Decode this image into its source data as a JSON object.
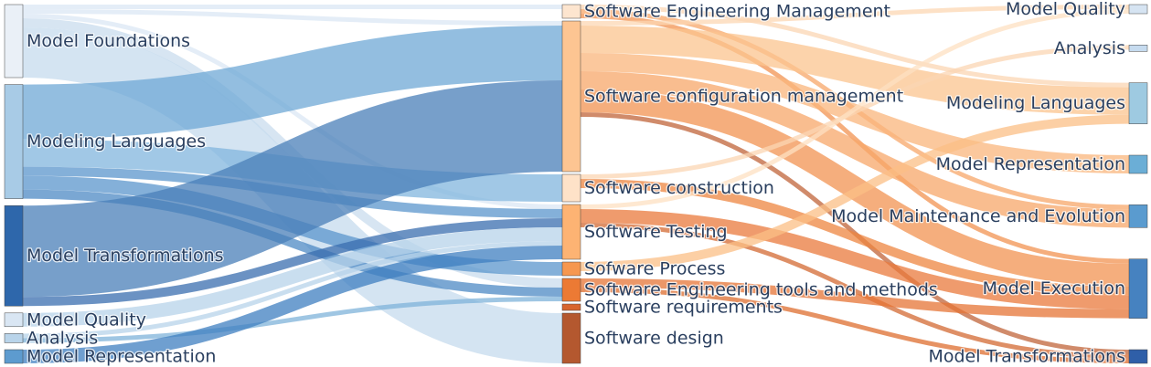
{
  "chart_data": {
    "type": "sankey",
    "nodes": [
      {
        "id": "L0",
        "column": 0,
        "label": "Model Foundations",
        "color": "#eaf0f7"
      },
      {
        "id": "L1",
        "column": 0,
        "label": "Modeling Languages",
        "color": "#a8cbe6"
      },
      {
        "id": "L2",
        "column": 0,
        "label": "Model Transformations",
        "color": "#2e67ab"
      },
      {
        "id": "L3",
        "column": 0,
        "label": "Model Quality",
        "color": "#d9e6f3"
      },
      {
        "id": "L4",
        "column": 0,
        "label": "Analysis",
        "color": "#b9d4ea"
      },
      {
        "id": "L5",
        "column": 0,
        "label": "Model Representation",
        "color": "#5d9bcf"
      },
      {
        "id": "M0",
        "column": 1,
        "label": "Software Engineering Management",
        "color": "#fde5cf"
      },
      {
        "id": "M1",
        "column": 1,
        "label": "Software configuration management",
        "color": "#fdc592"
      },
      {
        "id": "M2",
        "column": 1,
        "label": "Software construction",
        "color": "#fee2c8"
      },
      {
        "id": "M3",
        "column": 1,
        "label": "Software Testing",
        "color": "#fdb373"
      },
      {
        "id": "M4",
        "column": 1,
        "label": "Sofware Process",
        "color": "#f6974f"
      },
      {
        "id": "M5",
        "column": 1,
        "label": "Software Engineering tools and methods",
        "color": "#ec7a34"
      },
      {
        "id": "M6",
        "column": 1,
        "label": "Software requirements",
        "color": "#d8652d"
      },
      {
        "id": "M7",
        "column": 1,
        "label": "Software design",
        "color": "#b4582f"
      },
      {
        "id": "R0",
        "column": 2,
        "label": "Model Quality",
        "color": "#d6e4f2"
      },
      {
        "id": "R1",
        "column": 2,
        "label": "Analysis",
        "color": "#c6dbef"
      },
      {
        "id": "R2",
        "column": 2,
        "label": "Modeling Languages",
        "color": "#9ecae1"
      },
      {
        "id": "R3",
        "column": 2,
        "label": "Model Representation",
        "color": "#6baed6"
      },
      {
        "id": "R4",
        "column": 2,
        "label": "Model Maintenance and Evolution",
        "color": "#5a9bcf"
      },
      {
        "id": "R5",
        "column": 2,
        "label": "Model Execution",
        "color": "#4682c0"
      },
      {
        "id": "R6",
        "column": 2,
        "label": "Model Transformations",
        "color": "#2f5fa8"
      }
    ],
    "links": [
      {
        "source": "L0",
        "target": "M0",
        "value": 1,
        "color": "#dbe7f4"
      },
      {
        "source": "L0",
        "target": "M1",
        "value": 1,
        "color": "#dbe7f4"
      },
      {
        "source": "L0",
        "target": "M3",
        "value": 1,
        "color": "#dbe7f4"
      },
      {
        "source": "L0",
        "target": "M5",
        "value": 2,
        "color": "#c9dcee"
      },
      {
        "source": "L0",
        "target": "M7",
        "value": 11,
        "color": "#c6dbee"
      },
      {
        "source": "L1",
        "target": "M1",
        "value": 12,
        "color": "#6fa8d6"
      },
      {
        "source": "L1",
        "target": "M2",
        "value": 6,
        "color": "#82b5de"
      },
      {
        "source": "L1",
        "target": "M3",
        "value": 2,
        "color": "#5b96cc"
      },
      {
        "source": "L1",
        "target": "M4",
        "value": 3,
        "color": "#5b96cc"
      },
      {
        "source": "L1",
        "target": "M5",
        "value": 2,
        "color": "#4d89c4"
      },
      {
        "source": "L2",
        "target": "M1",
        "value": 20,
        "color": "#4a7fb8"
      },
      {
        "source": "L2",
        "target": "M3",
        "value": 2,
        "color": "#3a6eaf"
      },
      {
        "source": "L3",
        "target": "M3",
        "value": 3,
        "color": "#b7d3ea"
      },
      {
        "source": "L4",
        "target": "M3",
        "value": 1,
        "color": "#b7d3ea"
      },
      {
        "source": "L4",
        "target": "M5",
        "value": 1,
        "color": "#7fb3d9"
      },
      {
        "source": "L5",
        "target": "M3",
        "value": 3,
        "color": "#3f7fc0"
      },
      {
        "source": "M0",
        "target": "R2",
        "value": 1,
        "color": "#fbd6b3"
      },
      {
        "source": "M0",
        "target": "R4",
        "value": 1,
        "color": "#f7a76a"
      },
      {
        "source": "M0",
        "target": "R5",
        "value": 1,
        "color": "#f29352"
      },
      {
        "source": "M1",
        "target": "R0",
        "value": 1,
        "color": "#fcd7b3"
      },
      {
        "source": "M1",
        "target": "R2",
        "value": 6,
        "color": "#fbc48f"
      },
      {
        "source": "M1",
        "target": "R3",
        "value": 4,
        "color": "#f9b57c"
      },
      {
        "source": "M1",
        "target": "R4",
        "value": 4,
        "color": "#f7a76a"
      },
      {
        "source": "M1",
        "target": "R5",
        "value": 5,
        "color": "#f29352"
      },
      {
        "source": "M1",
        "target": "R6",
        "value": 1,
        "color": "#c0643a"
      },
      {
        "source": "M2",
        "target": "R1",
        "value": 1,
        "color": "#fbd6b3"
      },
      {
        "source": "M2",
        "target": "R5",
        "value": 2,
        "color": "#ee8640"
      },
      {
        "source": "M3",
        "target": "R0",
        "value": 1,
        "color": "#fde0c2"
      },
      {
        "source": "M3",
        "target": "R5",
        "value": 3,
        "color": "#e97a3c"
      },
      {
        "source": "M3",
        "target": "R6",
        "value": 1,
        "color": "#d36a33"
      },
      {
        "source": "M4",
        "target": "R2",
        "value": 2,
        "color": "#fbbf85"
      },
      {
        "source": "M5",
        "target": "R5",
        "value": 2,
        "color": "#e57436"
      },
      {
        "source": "M5",
        "target": "R6",
        "value": 1,
        "color": "#dd6d2f"
      }
    ]
  }
}
